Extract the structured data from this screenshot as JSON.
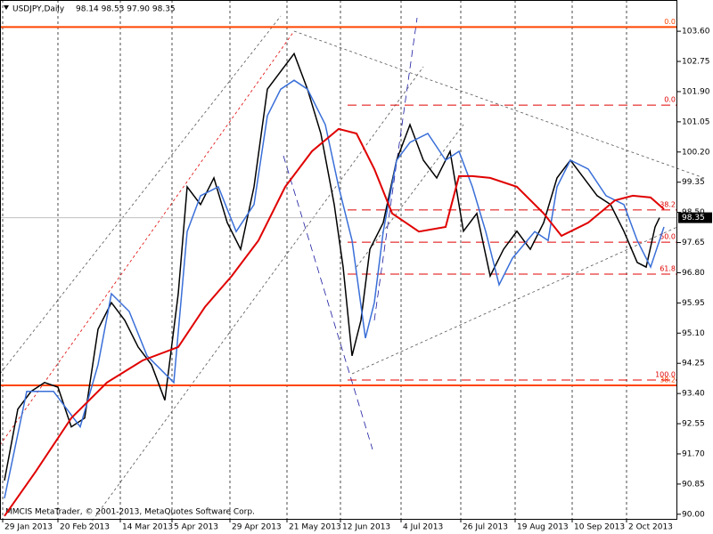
{
  "chart_data": {
    "type": "line",
    "title": "USDJPY,Daily",
    "subtitle": "98.14 98.53 97.90 98.35",
    "footer": "MMCIS MetaTrader, © 2001-2013, MetaQuotes Software Corp.",
    "xlim": [
      0,
      190
    ],
    "ylim": [
      89.87,
      104.48
    ],
    "xticks": [
      {
        "value": 0.75,
        "label": "29 Jan 2013"
      },
      {
        "value": 16.25,
        "label": "20 Feb 2013"
      },
      {
        "value": 33.75,
        "label": "14 Mar 2013"
      },
      {
        "value": 48.25,
        "label": "5 Apr 2013"
      },
      {
        "value": 64.5,
        "label": "29 Apr 2013"
      },
      {
        "value": 80.5,
        "label": "21 May 2013"
      },
      {
        "value": 95.5,
        "label": "12 Jun 2013"
      },
      {
        "value": 112.5,
        "label": "4 Jul 2013"
      },
      {
        "value": 129.25,
        "label": "26 Jul 2013"
      },
      {
        "value": 144.5,
        "label": "19 Aug 2013"
      },
      {
        "value": 160.5,
        "label": "10 Sep 2013"
      },
      {
        "value": 175.75,
        "label": "2 Oct 2013"
      }
    ],
    "yticks": [
      {
        "value": 103.6,
        "label": "103.60"
      },
      {
        "value": 102.75,
        "label": "102.75"
      },
      {
        "value": 101.9,
        "label": "101.90"
      },
      {
        "value": 101.05,
        "label": "101.05"
      },
      {
        "value": 100.2,
        "label": "100.20"
      },
      {
        "value": 99.35,
        "label": "99.35"
      },
      {
        "value": 98.5,
        "label": "98.50"
      },
      {
        "value": 97.65,
        "label": "97.65"
      },
      {
        "value": 96.8,
        "label": "96.80"
      },
      {
        "value": 95.95,
        "label": "95.95"
      },
      {
        "value": 95.1,
        "label": "95.10"
      },
      {
        "value": 94.25,
        "label": "94.25"
      },
      {
        "value": 93.4,
        "label": "93.40"
      },
      {
        "value": 92.55,
        "label": "92.55"
      },
      {
        "value": 91.7,
        "label": "91.70"
      },
      {
        "value": 90.85,
        "label": "90.85"
      },
      {
        "value": 90.0,
        "label": "90.00"
      }
    ],
    "grid": true,
    "current": {
      "value": 98.35,
      "label": "98.35",
      "color": "#c0c0c0"
    },
    "levels": [
      {
        "value": 103.72,
        "label": "0.0",
        "color": "#ff4500",
        "style": "solid"
      },
      {
        "value": 93.63,
        "label": "38.2",
        "color": "#ff4500",
        "style": "solid"
      },
      {
        "value": 101.52,
        "label": "0.0",
        "color": "#e00000",
        "style": "dashed"
      },
      {
        "value": 98.57,
        "label": "38.2",
        "color": "#e00000",
        "style": "dashed"
      },
      {
        "value": 97.66,
        "label": "50.0",
        "color": "#e00000",
        "style": "dashed"
      },
      {
        "value": 96.76,
        "label": "61.8",
        "color": "#e00000",
        "style": "dashed"
      },
      {
        "value": 93.78,
        "label": "100.0",
        "color": "#e00000",
        "style": "dashed"
      }
    ],
    "series": [
      {
        "color": "#000000",
        "width": 1.5,
        "x": [
          1.25,
          5,
          8.75,
          12.5,
          16.25,
          20,
          23.75,
          27.5,
          31.25,
          35,
          38.75,
          42.5,
          46.25,
          50,
          52.5,
          56.25,
          60,
          63.75,
          67.5,
          71.25,
          75,
          78.75,
          82.5,
          86.25,
          90,
          93.75,
          96.25,
          98.75,
          101.25,
          103.75,
          107.5,
          111.25,
          115,
          118.75,
          122.5,
          126.25,
          130,
          133.75,
          137.5,
          141.25,
          145,
          148.75,
          152.5,
          156.25,
          160,
          163.75,
          167.5,
          171.25,
          175,
          178.75,
          181.25,
          183.75,
          185
        ],
        "values": [
          90.95,
          92.96,
          93.46,
          93.71,
          93.58,
          92.46,
          92.71,
          95.21,
          95.96,
          95.46,
          94.71,
          94.21,
          93.21,
          96.21,
          99.22,
          98.72,
          99.47,
          98.21,
          97.46,
          99.22,
          101.97,
          102.47,
          102.97,
          101.97,
          100.72,
          98.72,
          96.96,
          94.46,
          95.46,
          97.46,
          98.21,
          99.97,
          100.97,
          99.97,
          99.47,
          100.22,
          97.97,
          98.47,
          96.71,
          97.46,
          97.97,
          97.46,
          98.21,
          99.47,
          99.97,
          99.47,
          98.97,
          98.72,
          97.97,
          97.09,
          96.96,
          98.09,
          98.35
        ]
      },
      {
        "color": "#3a6fd8",
        "width": 1.5,
        "x": [
          1.25,
          7.5,
          15,
          22.5,
          27.5,
          31.25,
          36.25,
          41.25,
          48.75,
          52.5,
          56.25,
          61.25,
          66.25,
          71.25,
          75,
          78.75,
          82.5,
          86.25,
          91.25,
          95,
          98.75,
          102.5,
          105,
          107.5,
          111.25,
          115,
          120,
          125,
          128.75,
          132.5,
          136.25,
          140,
          143.75,
          150,
          153.75,
          156.25,
          160,
          165,
          170,
          175,
          178.75,
          182.5,
          186.25
        ],
        "values": [
          90.45,
          93.46,
          93.46,
          92.46,
          94.21,
          96.21,
          95.71,
          94.46,
          93.71,
          97.96,
          98.97,
          99.22,
          97.96,
          98.72,
          101.22,
          101.97,
          102.22,
          101.97,
          100.97,
          99.22,
          97.71,
          94.96,
          95.96,
          97.96,
          99.97,
          100.47,
          100.72,
          99.97,
          100.22,
          99.22,
          97.96,
          96.46,
          97.21,
          97.96,
          97.71,
          99.22,
          99.97,
          99.72,
          98.97,
          98.72,
          97.71,
          96.96,
          98.09
        ]
      },
      {
        "color": "#e00000",
        "width": 2,
        "x": [
          1.25,
          10,
          20,
          30,
          40,
          50,
          57.5,
          65,
          72.5,
          80,
          87.5,
          95,
          100,
          105,
          110,
          117.5,
          125,
          128.75,
          132.5,
          137.5,
          145,
          152.5,
          157.5,
          165,
          172.5,
          177.5,
          182.5,
          186.25
        ],
        "values": [
          89.95,
          91.2,
          92.71,
          93.71,
          94.33,
          94.71,
          95.84,
          96.71,
          97.71,
          99.22,
          100.22,
          100.85,
          100.72,
          99.72,
          98.47,
          97.96,
          98.09,
          99.52,
          99.52,
          99.47,
          99.22,
          98.47,
          97.84,
          98.21,
          98.84,
          98.97,
          98.92,
          98.59
        ]
      }
    ]
  }
}
